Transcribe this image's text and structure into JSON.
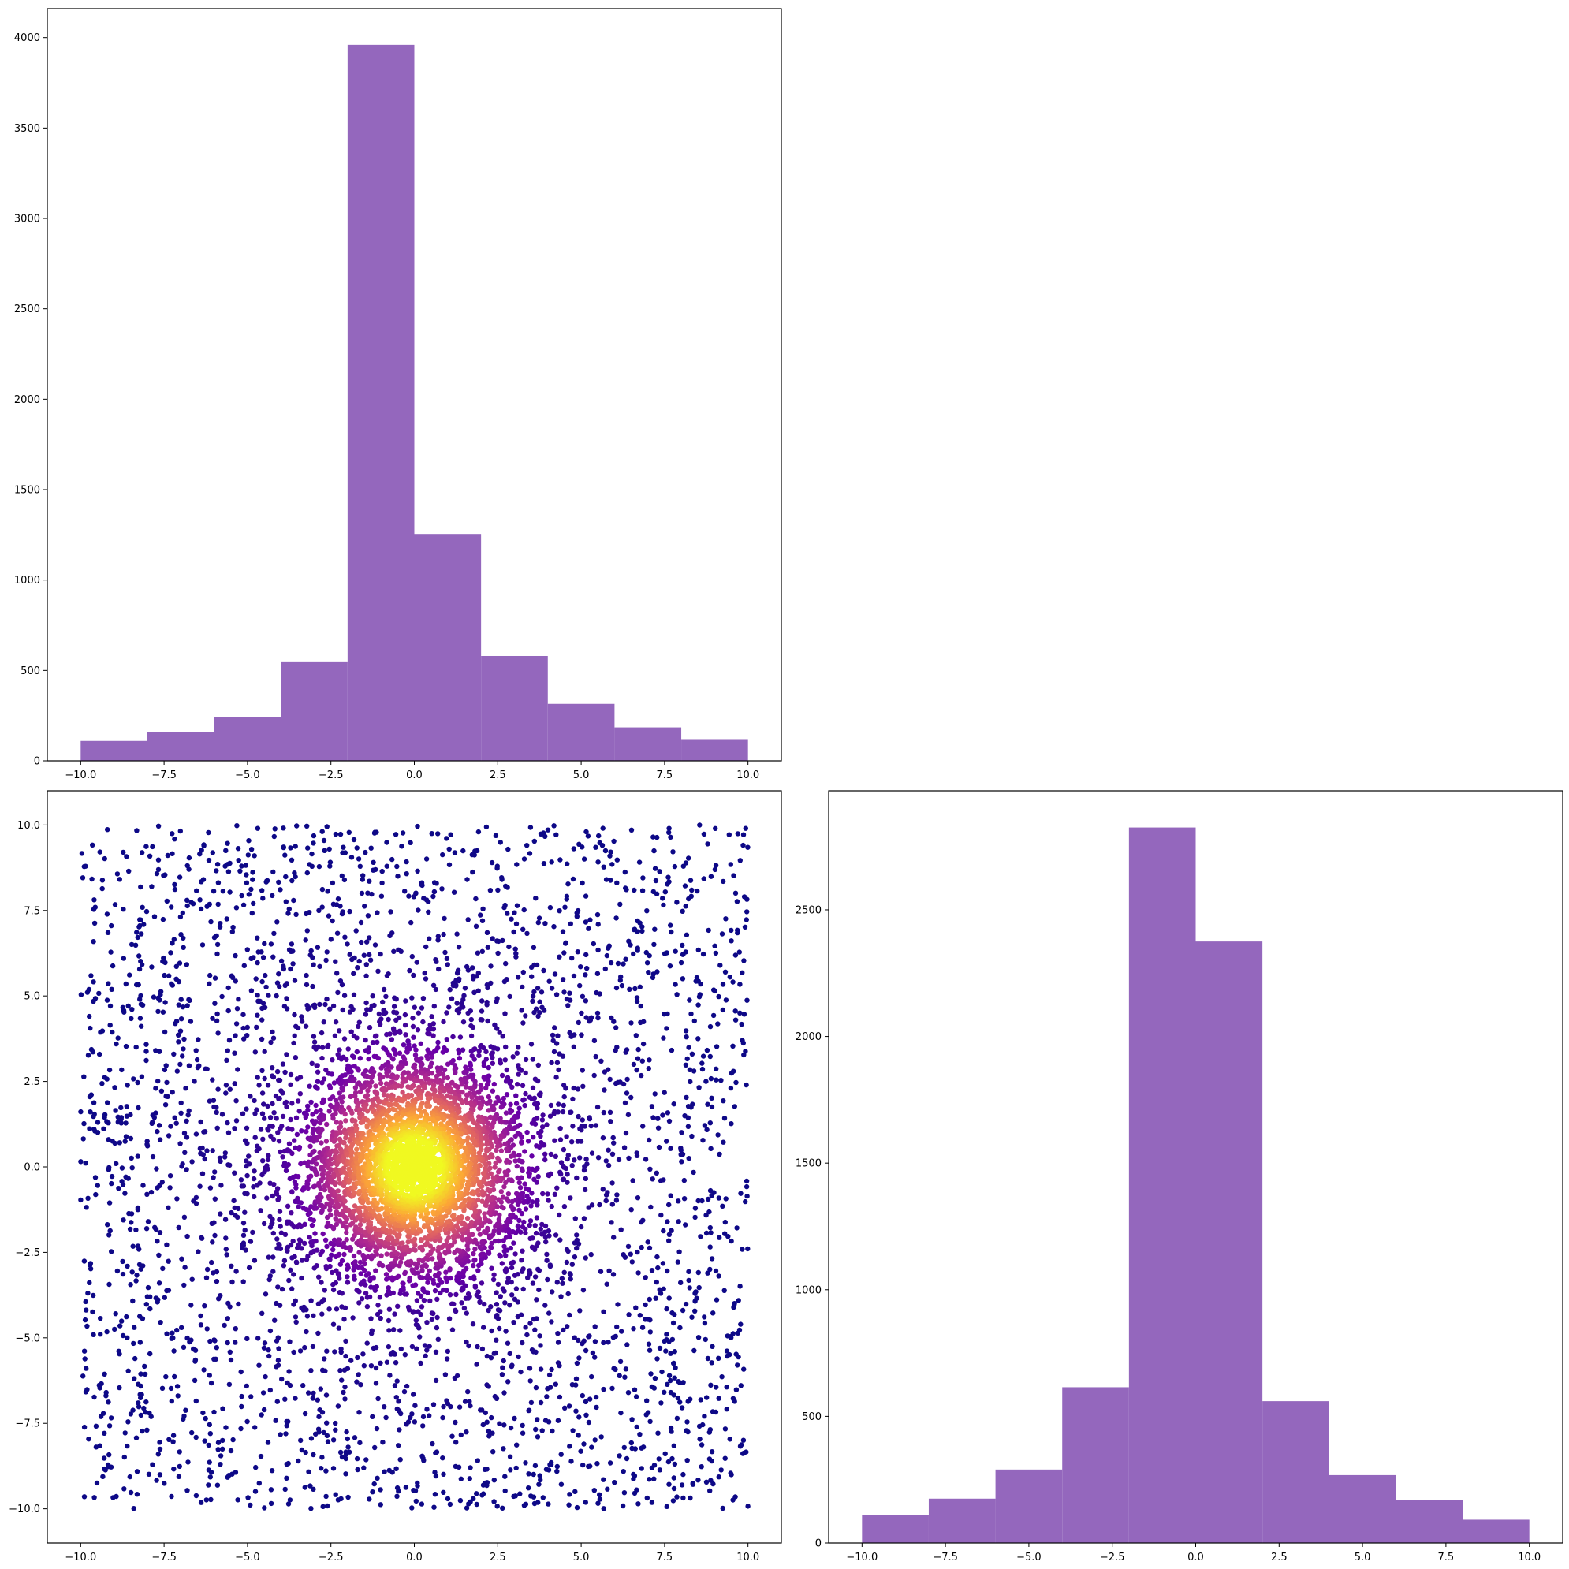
{
  "colors": {
    "bar_fill": "#9467bd",
    "axes_frame": "#000000",
    "background": "#ffffff",
    "scatter_colormap": [
      "#0d0887",
      "#6a00a8",
      "#b12a90",
      "#e16462",
      "#fca636",
      "#f0f921"
    ]
  },
  "chart_data": [
    {
      "type": "bar",
      "panel": "top-left",
      "bin_edges": [
        -10,
        -8,
        -6,
        -4,
        -2,
        0,
        2,
        4,
        6,
        8,
        10
      ],
      "values": [
        110,
        160,
        240,
        550,
        3960,
        1255,
        580,
        315,
        185,
        120
      ],
      "xlim": [
        -11,
        11
      ],
      "ylim": [
        0,
        4160
      ],
      "xticks": [
        -10,
        -7.5,
        -5,
        -2.5,
        0,
        2.5,
        5,
        7.5,
        10
      ],
      "xtick_labels": [
        "−10.0",
        "−7.5",
        "−5.0",
        "−2.5",
        "0.0",
        "2.5",
        "5.0",
        "7.5",
        "10.0"
      ],
      "yticks": [
        0,
        500,
        1000,
        1500,
        2000,
        2500,
        3000,
        3500,
        4000
      ],
      "ytick_labels": [
        "0",
        "500",
        "1000",
        "1500",
        "2000",
        "2500",
        "3000",
        "3500",
        "4000"
      ],
      "grid": false
    },
    {
      "type": "scatter",
      "panel": "bottom-left",
      "description_of_points": "about 7000 points: roughly 4000 concentrated near the origin (spread ~1) and about 3000 spread uniformly over [-10, 10] x [-10, 10]; each point colored by local density with the plasma colormap (dark purple = sparse, yellow = dense)",
      "xlim": [
        -11,
        11
      ],
      "ylim": [
        -11,
        11
      ],
      "xticks": [
        -10,
        -7.5,
        -5,
        -2.5,
        0,
        2.5,
        5,
        7.5,
        10
      ],
      "xtick_labels": [
        "−10.0",
        "−7.5",
        "−5.0",
        "−2.5",
        "0.0",
        "2.5",
        "5.0",
        "7.5",
        "10.0"
      ],
      "yticks": [
        -10,
        -7.5,
        -5,
        -2.5,
        0,
        2.5,
        5,
        7.5,
        10
      ],
      "ytick_labels": [
        "−10.0",
        "−7.5",
        "−5.0",
        "−2.5",
        "0.0",
        "2.5",
        "5.0",
        "7.5",
        "10.0"
      ],
      "grid": false
    },
    {
      "type": "bar",
      "panel": "bottom-right",
      "bin_edges": [
        -10,
        -8,
        -6,
        -4,
        -2,
        0,
        2,
        4,
        6,
        8,
        10
      ],
      "values": [
        110,
        175,
        290,
        615,
        2825,
        2375,
        560,
        268,
        170,
        92
      ],
      "xlim": [
        -11,
        11
      ],
      "ylim": [
        0,
        2970
      ],
      "xticks": [
        -10,
        -7.5,
        -5,
        -2.5,
        0,
        2.5,
        5,
        7.5,
        10
      ],
      "xtick_labels": [
        "−10.0",
        "−7.5",
        "−5.0",
        "−2.5",
        "0.0",
        "2.5",
        "5.0",
        "7.5",
        "10.0"
      ],
      "yticks": [
        0,
        500,
        1000,
        1500,
        2000,
        2500
      ],
      "ytick_labels": [
        "0",
        "500",
        "1000",
        "1500",
        "2000",
        "2500"
      ],
      "grid": false
    }
  ]
}
